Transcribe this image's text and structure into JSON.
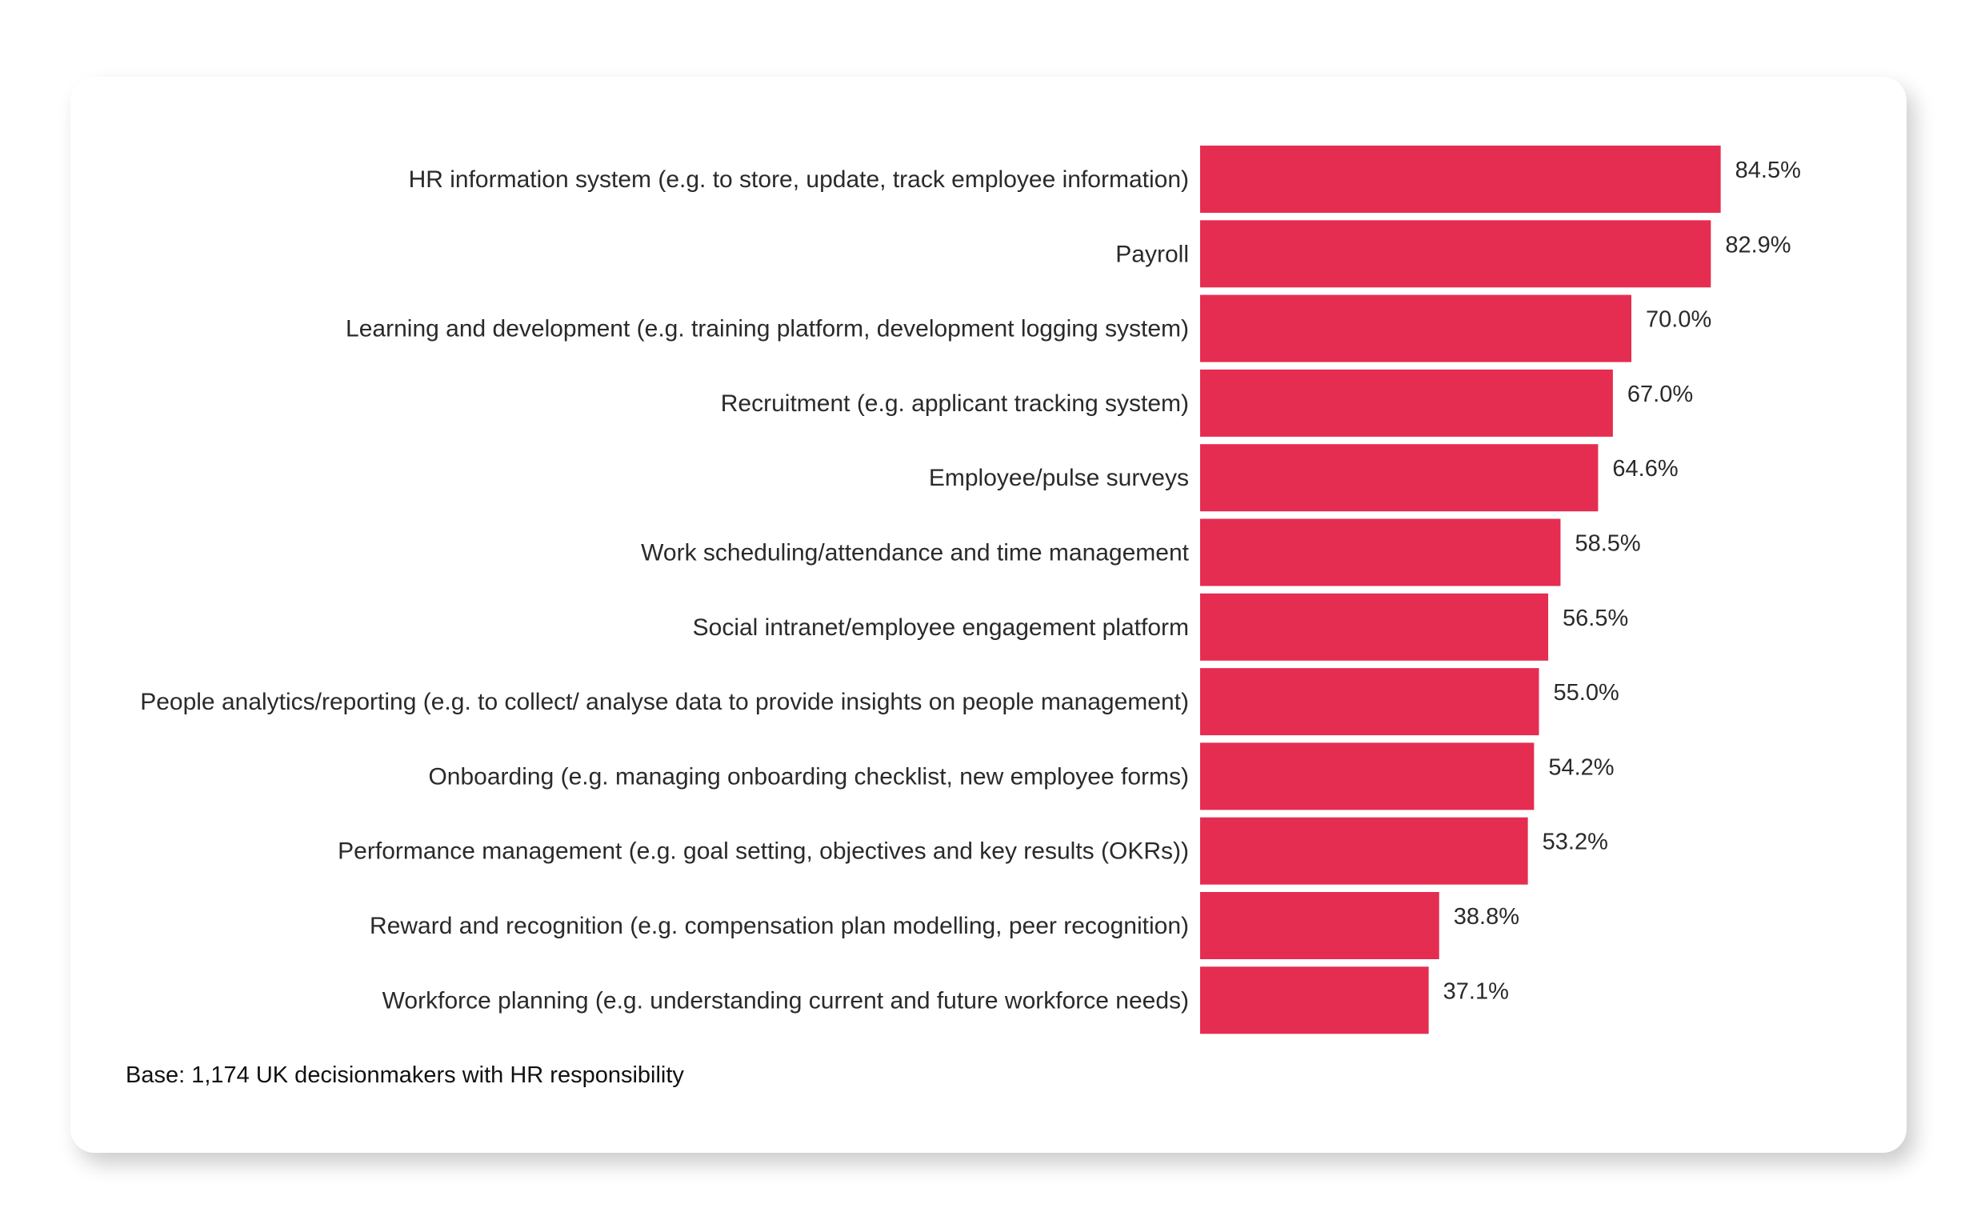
{
  "chart_data": {
    "type": "bar",
    "orientation": "horizontal",
    "title": "",
    "xlabel": "",
    "ylabel": "",
    "categories": [
      "HR information system (e.g. to store, update, track employee information)",
      "Payroll",
      "Learning and development (e.g. training platform, development logging system)",
      "Recruitment (e.g. applicant tracking system)",
      "Employee/pulse surveys",
      "Work scheduling/attendance and time management",
      "Social intranet/employee engagement platform",
      "People analytics/reporting (e.g. to collect/ analyse data to provide insights on people management)",
      "Onboarding (e.g. managing onboarding checklist, new employee forms)",
      "Performance management (e.g. goal setting, objectives and key results (OKRs))",
      "Reward and recognition (e.g. compensation plan modelling, peer recognition)",
      "Workforce planning (e.g. understanding current and future workforce needs)"
    ],
    "values": [
      84.5,
      82.9,
      70.0,
      67.0,
      64.6,
      58.5,
      56.5,
      55.0,
      54.2,
      53.2,
      38.8,
      37.1
    ],
    "value_labels": [
      "84.5%",
      "82.9%",
      "70.0%",
      "67.0%",
      "64.6%",
      "58.5%",
      "56.5%",
      "55.0%",
      "54.2%",
      "53.2%",
      "38.8%",
      "37.1%"
    ],
    "xlim": [
      0,
      100
    ],
    "grid": false,
    "legend": "none",
    "bar_color": "#e52d51"
  },
  "footnote": "Base: 1,174 UK decisionmakers with HR responsibility"
}
